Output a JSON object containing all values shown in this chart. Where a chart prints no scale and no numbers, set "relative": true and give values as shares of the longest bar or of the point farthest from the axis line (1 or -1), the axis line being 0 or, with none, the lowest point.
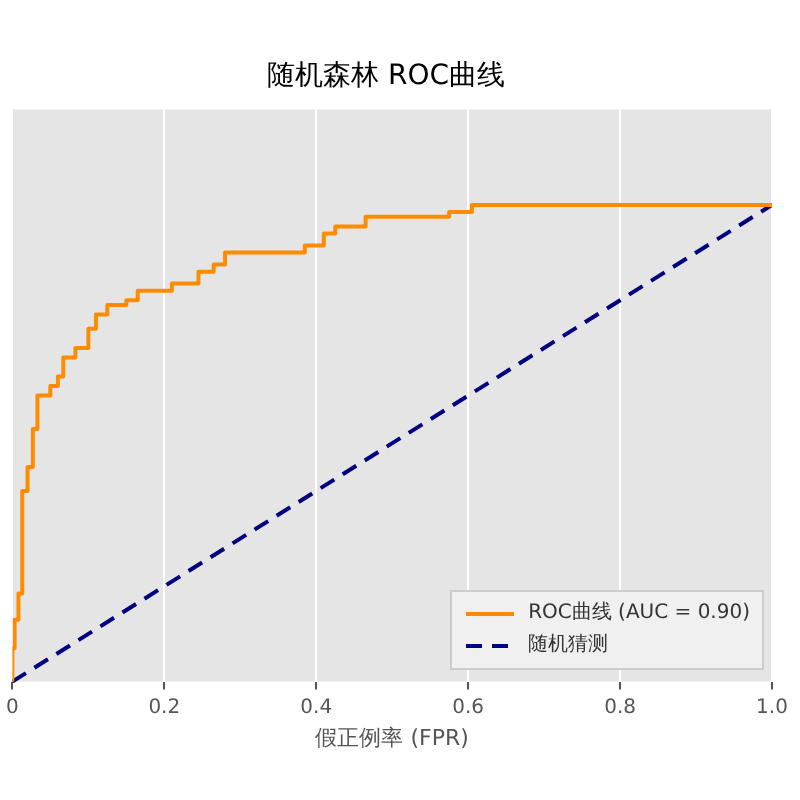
{
  "chart_data": {
    "type": "line",
    "title": "随机森林 ROC曲线",
    "xlabel": "假正例率 (FPR)",
    "xlim": [
      0,
      1
    ],
    "xticks": [
      {
        "value": 0,
        "label": "0"
      },
      {
        "value": 0.2,
        "label": "0.2"
      },
      {
        "value": 0.4,
        "label": "0.4"
      },
      {
        "value": 0.6,
        "label": "0.6"
      },
      {
        "value": 0.8,
        "label": "0.8"
      },
      {
        "value": 1,
        "label": "1.0"
      }
    ],
    "relative": true,
    "grid": "x",
    "legend": "bottom right",
    "marker": "none",
    "series": [
      {
        "name": "ROC曲线 (AUC = 0.90)",
        "color": "#ff8c00",
        "line_style": "solid",
        "x": [
          0,
          0,
          0.003,
          0.003,
          0.008,
          0.008,
          0.013,
          0.013,
          0.02,
          0.02,
          0.027,
          0.027,
          0.033,
          0.033,
          0.05,
          0.05,
          0.06,
          0.06,
          0.067,
          0.067,
          0.083,
          0.083,
          0.1,
          0.1,
          0.11,
          0.11,
          0.125,
          0.125,
          0.15,
          0.15,
          0.165,
          0.165,
          0.21,
          0.21,
          0.245,
          0.245,
          0.265,
          0.265,
          0.28,
          0.28,
          0.385,
          0.385,
          0.41,
          0.41,
          0.425,
          0.425,
          0.465,
          0.465,
          0.575,
          0.575,
          0.605,
          0.605,
          1
        ],
        "values": [
          0,
          0.07,
          0.07,
          0.13,
          0.13,
          0.185,
          0.185,
          0.4,
          0.4,
          0.45,
          0.45,
          0.53,
          0.53,
          0.6,
          0.6,
          0.62,
          0.62,
          0.64,
          0.64,
          0.68,
          0.68,
          0.7,
          0.7,
          0.74,
          0.74,
          0.77,
          0.77,
          0.79,
          0.79,
          0.8,
          0.8,
          0.82,
          0.82,
          0.835,
          0.835,
          0.86,
          0.86,
          0.875,
          0.875,
          0.9,
          0.9,
          0.915,
          0.915,
          0.94,
          0.94,
          0.955,
          0.955,
          0.975,
          0.975,
          0.985,
          0.985,
          1,
          1
        ]
      },
      {
        "name": "随机猜测",
        "color": "#000080",
        "line_style": "dashed",
        "x": [
          0,
          1
        ],
        "values": [
          0,
          1
        ]
      }
    ]
  }
}
